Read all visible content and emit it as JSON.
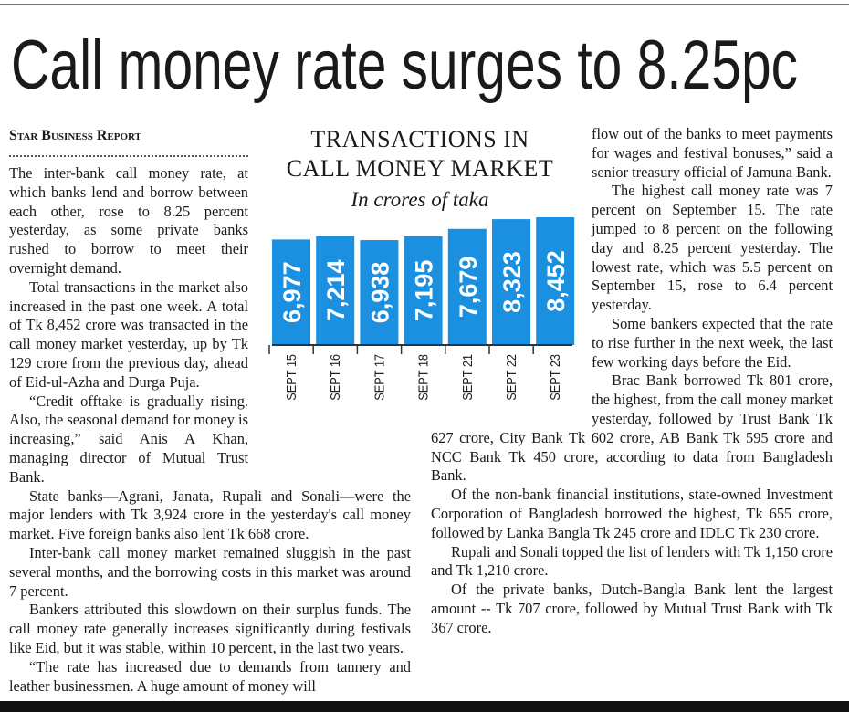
{
  "headline": "Call money rate surges to 8.25pc",
  "byline": "Star Business Report",
  "chart_data": {
    "type": "bar",
    "title": "TRANSACTIONS IN CALL MONEY MARKET",
    "subtitle": "In crores of taka",
    "categories": [
      "SEPT 15",
      "SEPT 16",
      "SEPT 17",
      "SEPT 18",
      "SEPT 21",
      "SEPT 22",
      "SEPT 23"
    ],
    "values": [
      6977,
      7214,
      6938,
      7195,
      7679,
      8323,
      8452
    ],
    "value_labels": [
      "6,977",
      "7,214",
      "6,938",
      "7,195",
      "7,679",
      "8,323",
      "8,452"
    ],
    "color": "#1b8fe0"
  },
  "left_column": {
    "paragraphs": [
      "The inter-bank call money rate, at which banks lend and borrow between each other, rose to 8.25 percent yesterday, as some private banks rushed to borrow to meet their overnight demand.",
      "Total transactions in the market also increased in the past one week. A total of Tk 8,452 crore was transacted in the call money market yesterday, up by Tk 129 crore from the previous day, ahead of Eid-ul-Azha and Durga Puja.",
      "“Credit offtake is gradually rising. Also, the seasonal demand for money is increasing,” said Anis A Khan, managing director of Mutual Trust Bank.",
      "State banks—Agrani, Janata, Rupali and Sonali—were the major lenders with Tk 3,924 crore in the yesterday's call money market. Five foreign banks also lent Tk 668 crore.",
      "Inter-bank call money market remained sluggish in the past several months, and the borrowing costs in this market was around 7 percent.",
      "Bankers attributed this slowdown on their surplus funds. The call money rate generally increases significantly during festivals like Eid, but it was stable, within 10 percent, in the last two years.",
      "“The rate has increased due to demands from tannery and leather businessmen. A huge amount of money will"
    ]
  },
  "right_column": {
    "paragraphs": [
      "flow out of the banks to meet payments for wages and festival bonuses,” said a senior treasury official of Jamuna Bank.",
      "The highest call money rate was 7 percent on September 15. The rate jumped to 8 percent on the following day and 8.25 percent yesterday. The lowest rate, which was 5.5 percent on September 15, rose to 6.4 percent yesterday.",
      "Some bankers expected that the rate to rise further in the next week, the last few working days before the Eid.",
      "Brac Bank borrowed Tk 801 crore, the highest, from the call money market yesterday, followed by Trust Bank Tk 627 crore, City Bank Tk 602 crore, AB Bank Tk 595 crore and NCC Bank Tk 450 crore, according to data from Bangladesh Bank.",
      "Of the non-bank financial institutions, state-owned Investment Corporation of Bangladesh borrowed the highest, Tk 655 crore, followed by Lanka Bangla Tk 245 crore and IDLC Tk 230 crore.",
      "Rupali and Sonali topped the list of lenders with Tk 1,150 crore and Tk 1,210 crore.",
      "Of the private banks, Dutch-Bangla Bank lent the largest amount -- Tk 707 crore, followed by Mutual Trust Bank with Tk 367 crore."
    ]
  }
}
